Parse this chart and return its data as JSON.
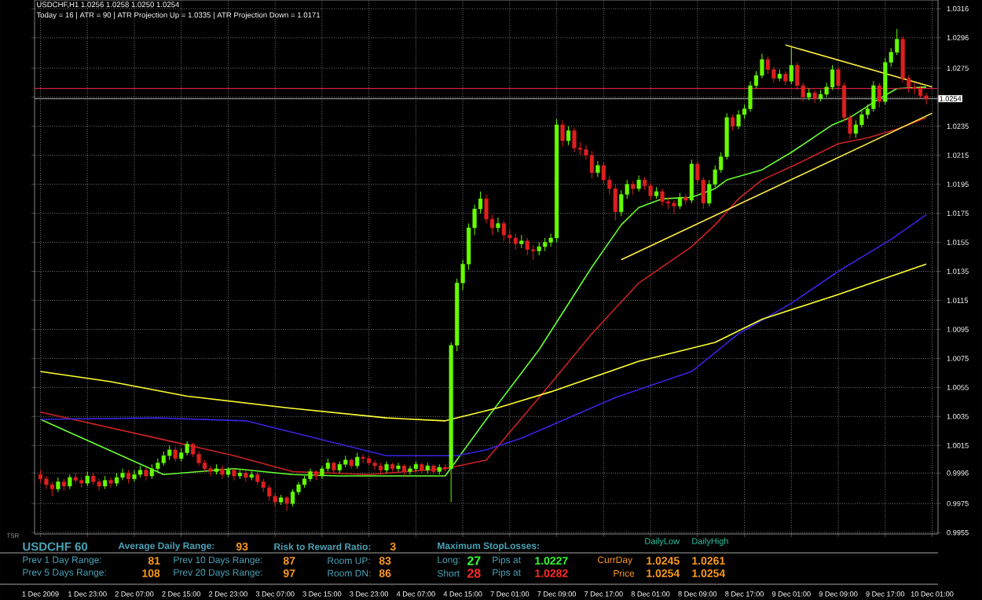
{
  "chart_data": {
    "type": "candlestick",
    "title": "USDCHF,H1  1.0256 1.0258 1.0250 1.0254",
    "subtitle": "Today = 16  |  ATR = 90  |  ATR Projection Up = 1.0335  |  ATR Projection Down = 1.0171",
    "categories": [
      "1 Dec 2009",
      null,
      null,
      null,
      null,
      null,
      null,
      null,
      "1 Dec 23:00",
      null,
      null,
      null,
      null,
      null,
      null,
      null,
      "2 Dec 07:00",
      null,
      null,
      null,
      null,
      null,
      null,
      null,
      "2 Dec 15:00",
      null,
      null,
      null,
      null,
      null,
      null,
      null,
      "2 Dec 23:00",
      null,
      null,
      null,
      null,
      null,
      null,
      null,
      "3 Dec 07:00",
      null,
      null,
      null,
      null,
      null,
      null,
      null,
      "3 Dec 15:00",
      null,
      null,
      null,
      null,
      null,
      null,
      null,
      "3 Dec 23:00",
      null,
      null,
      null,
      null,
      null,
      null,
      null,
      "4 Dec 07:00",
      null,
      null,
      null,
      null,
      null,
      null,
      null,
      "4 Dec 15:00",
      null,
      null,
      null,
      null,
      null,
      null,
      null,
      "7 Dec 01:00",
      null,
      null,
      null,
      null,
      null,
      null,
      null,
      "7 Dec 09:00",
      null,
      null,
      null,
      null,
      null,
      null,
      null,
      "7 Dec 17:00",
      null,
      null,
      null,
      null,
      null,
      null,
      null,
      "8 Dec 01:00",
      null,
      null,
      null,
      null,
      null,
      null,
      null,
      "8 Dec 09:00",
      null,
      null,
      null,
      null,
      null,
      null,
      null,
      "8 Dec 17:00",
      null,
      null,
      null,
      null,
      null,
      null,
      null,
      "9 Dec 01:00",
      null,
      null,
      null,
      null,
      null,
      null,
      null,
      "9 Dec 09:00",
      null,
      null,
      null,
      null,
      null,
      null,
      null,
      "9 Dec 17:00",
      null,
      null,
      null,
      null,
      null,
      null,
      null,
      "10 Dec 01:00"
    ],
    "ohlc": [
      [
        0.9995,
        0.9998,
        0.9989,
        0.9992
      ],
      [
        0.9992,
        0.9994,
        0.9985,
        0.9988
      ],
      [
        0.9988,
        0.999,
        0.998,
        0.9985
      ],
      [
        0.9985,
        0.9993,
        0.9983,
        0.999
      ],
      [
        0.999,
        0.9992,
        0.9984,
        0.9987
      ],
      [
        0.9987,
        0.9995,
        0.9985,
        0.9993
      ],
      [
        0.9993,
        0.9996,
        0.9989,
        0.9991
      ],
      [
        0.9991,
        0.9993,
        0.9986,
        0.9989
      ],
      [
        0.9989,
        0.9997,
        0.9987,
        0.9994
      ],
      [
        0.9994,
        0.9996,
        0.9988,
        0.999
      ],
      [
        0.999,
        0.9992,
        0.9984,
        0.9987
      ],
      [
        0.9987,
        0.9994,
        0.9985,
        0.9991
      ],
      [
        0.9991,
        0.9993,
        0.9986,
        0.9989
      ],
      [
        0.9989,
        0.9996,
        0.9987,
        0.9993
      ],
      [
        0.9993,
        0.9999,
        0.9991,
        0.9996
      ],
      [
        0.9996,
        0.9998,
        0.9989,
        0.9992
      ],
      [
        0.9992,
        0.9998,
        0.999,
        0.9995
      ],
      [
        0.9995,
        1.0001,
        0.9993,
        0.9998
      ],
      [
        0.9998,
        1.0,
        0.9991,
        0.9994
      ],
      [
        0.9994,
        1.0002,
        0.9992,
        0.9999
      ],
      [
        0.9999,
        1.0006,
        0.9997,
        1.0003
      ],
      [
        1.0003,
        1.0011,
        1.0001,
        1.0008
      ],
      [
        1.0008,
        1.0015,
        1.0005,
        1.0012
      ],
      [
        1.0012,
        1.0014,
        1.0004,
        1.0006
      ],
      [
        1.0006,
        1.0013,
        1.0004,
        1.001
      ],
      [
        1.001,
        1.0018,
        1.0008,
        1.0016
      ],
      [
        1.0016,
        1.0017,
        1.0007,
        1.0009
      ],
      [
        1.0009,
        1.0011,
        1.0001,
        1.0003
      ],
      [
        1.0003,
        1.0005,
        0.9997,
        0.9999
      ],
      [
        0.9999,
        1.0001,
        0.9994,
        0.9997
      ],
      [
        0.9997,
        1.0002,
        0.9995,
        0.9999
      ],
      [
        0.9999,
        1.0001,
        0.9992,
        0.9995
      ],
      [
        0.9995,
        1.0,
        0.9993,
        0.9998
      ],
      [
        0.9998,
        0.9999,
        0.9991,
        0.9994
      ],
      [
        0.9994,
        0.9998,
        0.9992,
        0.9996
      ],
      [
        0.9996,
        0.9998,
        0.999,
        0.9993
      ],
      [
        0.9993,
        0.9997,
        0.9991,
        0.9995
      ],
      [
        0.9995,
        0.9997,
        0.9988,
        0.999
      ],
      [
        0.999,
        0.9992,
        0.9983,
        0.9986
      ],
      [
        0.9986,
        0.9988,
        0.9977,
        0.998
      ],
      [
        0.998,
        0.9982,
        0.9973,
        0.9976
      ],
      [
        0.9976,
        0.9981,
        0.9974,
        0.9979
      ],
      [
        0.9979,
        0.998,
        0.997,
        0.9975
      ],
      [
        0.9975,
        0.9985,
        0.9973,
        0.9983
      ],
      [
        0.9983,
        0.999,
        0.9981,
        0.9988
      ],
      [
        0.9988,
        0.9994,
        0.9986,
        0.9992
      ],
      [
        0.9992,
        0.9999,
        0.999,
        0.9997
      ],
      [
        0.9997,
        0.9998,
        0.9991,
        0.9994
      ],
      [
        0.9994,
        1.0001,
        0.9992,
        0.9999
      ],
      [
        0.9999,
        1.0006,
        0.9997,
        1.0003
      ],
      [
        1.0003,
        1.0004,
        0.9996,
        0.9998
      ],
      [
        0.9998,
        1.0004,
        0.9996,
        1.0002
      ],
      [
        1.0002,
        1.0008,
        1.0,
        1.0005
      ],
      [
        1.0005,
        1.0006,
        0.9999,
        1.0001
      ],
      [
        1.0001,
        1.001,
        0.9999,
        1.0007
      ],
      [
        1.0007,
        1.0009,
        1.0003,
        1.0006
      ],
      [
        1.0006,
        1.0008,
        1.0001,
        1.0003
      ],
      [
        1.0003,
        1.0005,
        0.9998,
        1.0001
      ],
      [
        1.0001,
        1.0003,
        0.9995,
        0.9998
      ],
      [
        0.9998,
        1.0004,
        0.9996,
        1.0002
      ],
      [
        1.0002,
        1.0003,
        0.9997,
        0.9999
      ],
      [
        0.9999,
        1.0003,
        0.9997,
        1.0001
      ],
      [
        1.0001,
        1.0002,
        0.9994,
        0.9997
      ],
      [
        0.9997,
        1.0001,
        0.9995,
        0.9999
      ],
      [
        0.9999,
        1.0004,
        0.9997,
        1.0002
      ],
      [
        1.0002,
        1.0003,
        0.9996,
        0.9998
      ],
      [
        0.9998,
        1.0003,
        0.9996,
        1.0001
      ],
      [
        1.0001,
        1.0002,
        0.9995,
        0.9997
      ],
      [
        0.9997,
        1.0002,
        0.9995,
        1.0
      ],
      [
        1.0,
        1.0002,
        0.9997,
        0.9999
      ],
      [
        0.9999,
        1.0086,
        0.9976,
        1.0084
      ],
      [
        1.0084,
        1.013,
        1.008,
        1.0127
      ],
      [
        1.0127,
        1.0143,
        1.0122,
        1.014
      ],
      [
        1.014,
        1.0168,
        1.0136,
        1.0165
      ],
      [
        1.0165,
        1.0181,
        1.016,
        1.0178
      ],
      [
        1.0178,
        1.019,
        1.0175,
        1.0185
      ],
      [
        1.0185,
        1.0188,
        1.0168,
        1.0171
      ],
      [
        1.0171,
        1.0174,
        1.016,
        1.0165
      ],
      [
        1.0165,
        1.0172,
        1.0162,
        1.0168
      ],
      [
        1.0168,
        1.017,
        1.0156,
        1.016
      ],
      [
        1.016,
        1.0164,
        1.0154,
        1.0158
      ],
      [
        1.0158,
        1.0161,
        1.015,
        1.0154
      ],
      [
        1.0154,
        1.016,
        1.0151,
        1.0156
      ],
      [
        1.0156,
        1.0158,
        1.0146,
        1.015
      ],
      [
        1.015,
        1.0153,
        1.0143,
        1.0149
      ],
      [
        1.0149,
        1.0155,
        1.0146,
        1.0152
      ],
      [
        1.0152,
        1.0158,
        1.0149,
        1.0155
      ],
      [
        1.0155,
        1.0161,
        1.0152,
        1.0158
      ],
      [
        1.0158,
        1.024,
        1.0155,
        1.0236
      ],
      [
        1.0236,
        1.0239,
        1.0221,
        1.0225
      ],
      [
        1.0225,
        1.0235,
        1.0222,
        1.0232
      ],
      [
        1.0232,
        1.0234,
        1.0217,
        1.022
      ],
      [
        1.022,
        1.0224,
        1.0215,
        1.0219
      ],
      [
        1.0219,
        1.0222,
        1.0212,
        1.0215
      ],
      [
        1.0215,
        1.0218,
        1.0199,
        1.0203
      ],
      [
        1.0203,
        1.0211,
        1.02,
        1.0208
      ],
      [
        1.0208,
        1.021,
        1.0195,
        1.0198
      ],
      [
        1.0198,
        1.0201,
        1.0188,
        1.0192
      ],
      [
        1.0192,
        1.0195,
        1.017,
        1.0176
      ],
      [
        1.0176,
        1.0191,
        1.0173,
        1.0188
      ],
      [
        1.0188,
        1.0198,
        1.0185,
        1.0195
      ],
      [
        1.0195,
        1.0197,
        1.0188,
        1.0192
      ],
      [
        1.0192,
        1.0201,
        1.019,
        1.0198
      ],
      [
        1.0198,
        1.02,
        1.0191,
        1.0194
      ],
      [
        1.0194,
        1.0196,
        1.0184,
        1.0187
      ],
      [
        1.0187,
        1.0193,
        1.0185,
        1.019
      ],
      [
        1.019,
        1.0192,
        1.018,
        1.0183
      ],
      [
        1.0183,
        1.0186,
        1.0178,
        1.0182
      ],
      [
        1.0182,
        1.0184,
        1.0175,
        1.018
      ],
      [
        1.018,
        1.0189,
        1.0178,
        1.0186
      ],
      [
        1.0186,
        1.0188,
        1.0181,
        1.0184
      ],
      [
        1.0184,
        1.0212,
        1.0182,
        1.0209
      ],
      [
        1.0209,
        1.0211,
        1.0195,
        1.0198
      ],
      [
        1.0198,
        1.02,
        1.0178,
        1.0182
      ],
      [
        1.0182,
        1.0198,
        1.018,
        1.0195
      ],
      [
        1.0195,
        1.0208,
        1.0193,
        1.0205
      ],
      [
        1.0205,
        1.0217,
        1.0203,
        1.0214
      ],
      [
        1.0214,
        1.0244,
        1.0212,
        1.0241
      ],
      [
        1.0241,
        1.0243,
        1.0232,
        1.0235
      ],
      [
        1.0235,
        1.0246,
        1.0233,
        1.0243
      ],
      [
        1.0243,
        1.025,
        1.024,
        1.0247
      ],
      [
        1.0247,
        1.0266,
        1.0245,
        1.0263
      ],
      [
        1.0263,
        1.0273,
        1.0261,
        1.027
      ],
      [
        1.027,
        1.0285,
        1.0268,
        1.0281
      ],
      [
        1.0281,
        1.0283,
        1.0271,
        1.0274
      ],
      [
        1.0274,
        1.0276,
        1.0265,
        1.0268
      ],
      [
        1.0268,
        1.0274,
        1.0266,
        1.0271
      ],
      [
        1.0271,
        1.0273,
        1.0263,
        1.0266
      ],
      [
        1.0266,
        1.029,
        1.0264,
        1.0277
      ],
      [
        1.0277,
        1.0279,
        1.026,
        1.0263
      ],
      [
        1.0263,
        1.0265,
        1.0252,
        1.0255
      ],
      [
        1.0255,
        1.0261,
        1.0253,
        1.0258
      ],
      [
        1.0258,
        1.026,
        1.0251,
        1.0254
      ],
      [
        1.0254,
        1.026,
        1.0252,
        1.0257
      ],
      [
        1.0257,
        1.0265,
        1.0255,
        1.0262
      ],
      [
        1.0262,
        1.0277,
        1.026,
        1.0274
      ],
      [
        1.0274,
        1.0276,
        1.026,
        1.0263
      ],
      [
        1.0263,
        1.0265,
        1.0238,
        1.0241
      ],
      [
        1.0241,
        1.0243,
        1.0226,
        1.023
      ],
      [
        1.023,
        1.0239,
        1.0227,
        1.0236
      ],
      [
        1.0236,
        1.0246,
        1.0234,
        1.0243
      ],
      [
        1.0243,
        1.025,
        1.024,
        1.0247
      ],
      [
        1.0247,
        1.0266,
        1.0245,
        1.0263
      ],
      [
        1.0263,
        1.0265,
        1.0248,
        1.0252
      ],
      [
        1.0252,
        1.0282,
        1.025,
        1.0279
      ],
      [
        1.0279,
        1.0289,
        1.0276,
        1.0286
      ],
      [
        1.0286,
        1.0302,
        1.0284,
        1.0295
      ],
      [
        1.0295,
        1.0297,
        1.0265,
        1.0268
      ],
      [
        1.0268,
        1.027,
        1.0258,
        1.0262
      ],
      [
        1.0262,
        1.0265,
        1.0257,
        1.0261
      ],
      [
        1.0261,
        1.0263,
        1.0254,
        1.0256
      ],
      [
        1.0256,
        1.0258,
        1.025,
        1.0254
      ],
      null
    ],
    "series": [
      {
        "type": "line",
        "color": "#66ff33",
        "values": [
          1.0033,
          null,
          null,
          null,
          null,
          null,
          null,
          null,
          null,
          null,
          null,
          null,
          null,
          null,
          null,
          null,
          null,
          null,
          null,
          null,
          null,
          0.9995,
          null,
          null,
          null,
          null,
          null,
          null,
          null,
          null,
          null,
          null,
          null,
          0.9999,
          null,
          null,
          null,
          null,
          null,
          null,
          null,
          null,
          null,
          0.9995,
          null,
          null,
          null,
          null,
          null,
          null,
          null,
          0.9994,
          null,
          null,
          null,
          null,
          null,
          null,
          null,
          null,
          null,
          null,
          null,
          null,
          null,
          0.9994,
          null,
          null,
          null,
          0.9994,
          null,
          null,
          null,
          null,
          null,
          null,
          1.0033,
          null,
          null,
          null,
          null,
          null,
          null,
          null,
          null,
          1.0081,
          null,
          null,
          null,
          null,
          null,
          null,
          null,
          null,
          1.0138,
          null,
          null,
          null,
          null,
          1.0167,
          null,
          null,
          1.0179,
          null,
          null,
          null,
          1.0185,
          null,
          null,
          null,
          null,
          1.0186,
          null,
          null,
          null,
          1.0192,
          null,
          1.0198,
          null,
          null,
          null,
          null,
          null,
          1.0205,
          null,
          null,
          null,
          null,
          1.0217,
          null,
          null,
          null,
          null,
          null,
          null,
          1.0236,
          null,
          null,
          1.0241,
          null,
          null,
          null,
          null,
          1.0254,
          null,
          null,
          1.0261,
          null,
          null,
          null,
          null,
          1.0262,
          null
        ]
      },
      {
        "type": "line",
        "color": "#cc2222",
        "values": [
          1.0038,
          null,
          null,
          null,
          null,
          null,
          null,
          null,
          null,
          null,
          null,
          null,
          null,
          null,
          null,
          null,
          null,
          null,
          null,
          null,
          null,
          1.0019,
          null,
          null,
          null,
          null,
          null,
          null,
          null,
          null,
          null,
          null,
          null,
          1.0008,
          null,
          null,
          null,
          null,
          null,
          null,
          null,
          null,
          null,
          0.9997,
          null,
          null,
          null,
          null,
          null,
          null,
          null,
          null,
          null,
          null,
          null,
          null,
          0.9995,
          null,
          null,
          null,
          null,
          null,
          null,
          null,
          null,
          null,
          null,
          null,
          null,
          0.9999,
          null,
          null,
          null,
          null,
          null,
          null,
          1.0005,
          null,
          null,
          null,
          null,
          null,
          null,
          null,
          null,
          1.0048,
          null,
          null,
          null,
          null,
          null,
          null,
          null,
          null,
          1.0092,
          null,
          null,
          null,
          null,
          null,
          null,
          null,
          1.0127,
          null,
          null,
          null,
          null,
          null,
          null,
          null,
          null,
          1.0152,
          null,
          null,
          null,
          1.0167,
          null,
          null,
          null,
          1.0185,
          null,
          null,
          null,
          1.0198,
          null,
          null,
          null,
          null,
          null,
          1.0209,
          null,
          null,
          null,
          null,
          null,
          null,
          1.0223,
          null,
          null,
          null,
          null,
          1.0227,
          null,
          null,
          null,
          null,
          1.0233,
          null,
          null,
          null,
          null,
          1.0241,
          null
        ]
      },
      {
        "type": "line",
        "color": "#3a22e0",
        "values": [
          1.0033,
          null,
          null,
          null,
          null,
          null,
          null,
          null,
          null,
          null,
          null,
          null,
          null,
          null,
          null,
          null,
          null,
          null,
          null,
          null,
          1.0034,
          null,
          null,
          null,
          null,
          null,
          null,
          null,
          null,
          null,
          null,
          null,
          null,
          null,
          null,
          1.0032,
          null,
          null,
          null,
          null,
          null,
          null,
          null,
          null,
          null,
          null,
          null,
          null,
          null,
          null,
          null,
          1.0016,
          null,
          null,
          null,
          null,
          null,
          null,
          null,
          1.0008,
          null,
          null,
          null,
          null,
          null,
          null,
          null,
          null,
          null,
          null,
          null,
          1.0008,
          null,
          null,
          null,
          null,
          1.0012,
          null,
          null,
          null,
          null,
          null,
          1.002,
          null,
          null,
          null,
          null,
          null,
          null,
          null,
          null,
          null,
          null,
          null,
          null,
          null,
          null,
          null,
          1.0048,
          null,
          null,
          null,
          null,
          null,
          null,
          null,
          null,
          null,
          null,
          null,
          null,
          1.0066,
          null,
          null,
          null,
          null,
          null,
          null,
          null,
          1.0092,
          null,
          null,
          null,
          null,
          null,
          null,
          null,
          null,
          1.0113,
          null,
          null,
          null,
          null,
          null,
          null,
          null,
          1.0135,
          null,
          null,
          null,
          null,
          null,
          null,
          null,
          null,
          1.0157,
          null,
          null,
          null,
          null,
          null,
          1.0174,
          null
        ]
      },
      {
        "type": "line",
        "color": "#ffff33",
        "values": [
          1.0066,
          null,
          null,
          null,
          null,
          null,
          null,
          null,
          null,
          null,
          null,
          null,
          1.0059,
          null,
          null,
          null,
          null,
          null,
          null,
          null,
          null,
          null,
          null,
          null,
          null,
          1.0049,
          null,
          null,
          null,
          null,
          null,
          null,
          null,
          null,
          null,
          null,
          null,
          null,
          null,
          null,
          null,
          null,
          1.0041,
          null,
          null,
          null,
          null,
          null,
          null,
          null,
          null,
          null,
          null,
          null,
          null,
          null,
          null,
          null,
          null,
          1.0034,
          null,
          null,
          null,
          null,
          null,
          null,
          null,
          null,
          null,
          1.0032,
          null,
          null,
          null,
          null,
          null,
          null,
          null,
          null,
          1.0041,
          null,
          null,
          null,
          null,
          null,
          null,
          null,
          null,
          1.0052,
          null,
          null,
          null,
          null,
          null,
          null,
          null,
          null,
          null,
          null,
          null,
          null,
          null,
          null,
          1.0073,
          null,
          null,
          null,
          null,
          null,
          null,
          null,
          null,
          null,
          null,
          null,
          null,
          1.0086,
          null,
          null,
          null,
          null,
          null,
          null,
          null,
          1.0102,
          null,
          null,
          null,
          null,
          null,
          null,
          null,
          null,
          null,
          null,
          null,
          null,
          1.0119,
          null,
          null,
          null,
          null,
          null,
          null,
          null,
          null,
          null,
          null,
          null,
          null,
          null,
          null,
          1.014,
          null
        ]
      },
      {
        "type": "line",
        "color": "#ffee44",
        "values": [
          null,
          null,
          null,
          null,
          null,
          null,
          null,
          null,
          null,
          null,
          null,
          null,
          null,
          null,
          null,
          null,
          null,
          null,
          null,
          null,
          null,
          null,
          null,
          null,
          null,
          null,
          null,
          null,
          null,
          null,
          null,
          null,
          null,
          null,
          null,
          null,
          null,
          null,
          null,
          null,
          null,
          null,
          null,
          null,
          null,
          null,
          null,
          null,
          null,
          null,
          null,
          null,
          null,
          null,
          null,
          null,
          null,
          null,
          null,
          null,
          null,
          null,
          null,
          null,
          null,
          null,
          null,
          null,
          null,
          null,
          null,
          null,
          null,
          null,
          null,
          null,
          null,
          null,
          null,
          null,
          null,
          null,
          null,
          null,
          null,
          null,
          null,
          null,
          null,
          null,
          null,
          null,
          null,
          null,
          null,
          null,
          null,
          null,
          null,
          1.0143,
          null,
          null,
          null,
          null,
          null,
          null,
          null,
          null,
          null,
          null,
          null,
          null,
          null,
          null,
          null,
          null,
          null,
          null,
          null,
          null,
          null,
          null,
          null,
          null,
          null,
          null,
          null,
          null,
          null,
          null,
          null,
          null,
          null,
          null,
          null,
          null,
          null,
          null,
          null,
          null,
          null,
          null,
          null,
          null,
          null,
          null,
          null,
          null,
          null,
          null,
          null,
          null,
          1.0244
        ]
      },
      {
        "type": "line",
        "color": "#ffee44",
        "values": [
          null,
          null,
          null,
          null,
          null,
          null,
          null,
          null,
          null,
          null,
          null,
          null,
          null,
          null,
          null,
          null,
          null,
          null,
          null,
          null,
          null,
          null,
          null,
          null,
          null,
          null,
          null,
          null,
          null,
          null,
          null,
          null,
          null,
          null,
          null,
          null,
          null,
          null,
          null,
          null,
          null,
          null,
          null,
          null,
          null,
          null,
          null,
          null,
          null,
          null,
          null,
          null,
          null,
          null,
          null,
          null,
          null,
          null,
          null,
          null,
          null,
          null,
          null,
          null,
          null,
          null,
          null,
          null,
          null,
          null,
          null,
          null,
          null,
          null,
          null,
          null,
          null,
          null,
          null,
          null,
          null,
          null,
          null,
          null,
          null,
          null,
          null,
          null,
          null,
          null,
          null,
          null,
          null,
          null,
          null,
          null,
          null,
          null,
          null,
          null,
          null,
          null,
          null,
          null,
          null,
          null,
          null,
          null,
          null,
          null,
          null,
          null,
          null,
          null,
          null,
          null,
          null,
          null,
          null,
          null,
          null,
          null,
          null,
          null,
          null,
          null,
          null,
          1.0291,
          null,
          null,
          null,
          null,
          null,
          null,
          null,
          null,
          null,
          null,
          null,
          null,
          null,
          null,
          null,
          null,
          null,
          null,
          null,
          null,
          null,
          null,
          null,
          null,
          1.0262
        ]
      }
    ],
    "ref_lines": [
      {
        "axis": "y",
        "value": 1.0261,
        "color": "#cc2244"
      },
      {
        "axis": "y",
        "value": 1.0254,
        "label": "1.0254",
        "color": "#8a8a8a"
      }
    ],
    "ylim": [
      0.9954,
      1.0322
    ],
    "yticks": [
      0.9955,
      0.9975,
      0.9996,
      1.0015,
      1.0035,
      1.0055,
      1.0075,
      1.0095,
      1.0115,
      1.0135,
      1.0155,
      1.0175,
      1.0195,
      1.0215,
      1.0235,
      {
        "value": 1.0255,
        "label": null
      },
      1.0275,
      1.0296,
      1.0316
    ],
    "grid": true,
    "annotations": [
      "TSR",
      "USDCHF 60",
      "Average Daily Range:",
      "93",
      "Risk to Reward Ratio:",
      "3",
      "Maximum StopLosses:",
      "DailyLow",
      "DailyHigh",
      "Prev 1 Day Range:",
      "81",
      "Prev 10 Days Range:",
      "87",
      "Room UP:",
      "83",
      "Long:",
      "27",
      "Pips at",
      "1.0227",
      "CurrDay",
      "1.0245",
      "1.0261",
      "Prev 5 Days Range:",
      "108",
      "Prev 20 Days Range:",
      "97",
      "Room DN:",
      "86",
      "Short",
      "28",
      "Pips at",
      "1.0282",
      "Price",
      "1.0254",
      "1.0254"
    ]
  }
}
